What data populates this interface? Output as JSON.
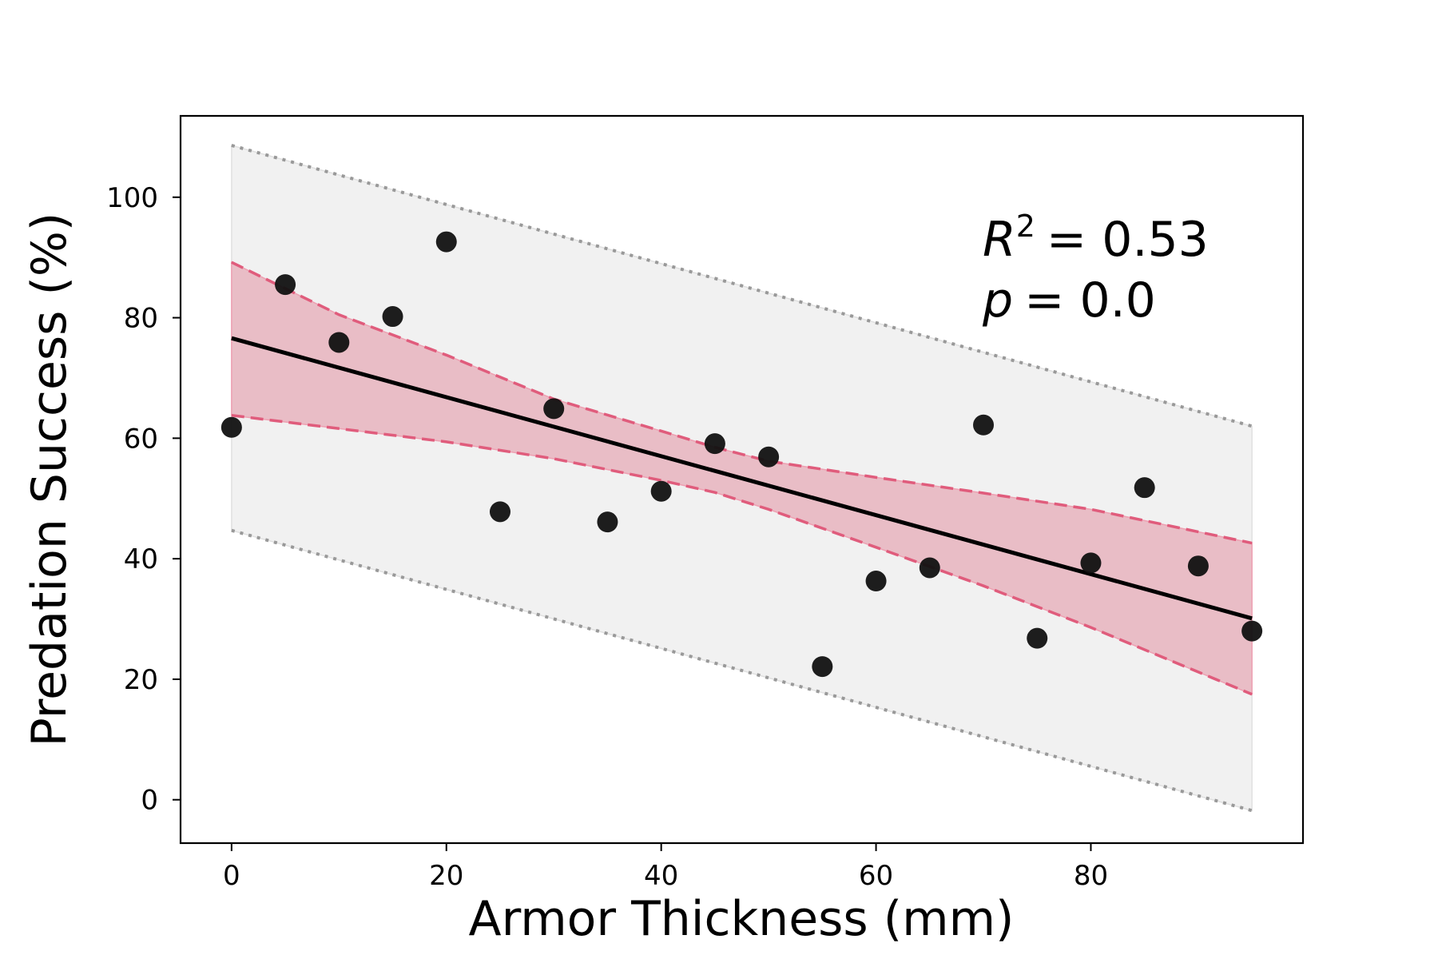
{
  "chart_data": {
    "type": "scatter",
    "xlabel": "Armor Thickness (mm)",
    "ylabel": "Predation Success (%)",
    "xlim": [
      -4.75,
      99.75
    ],
    "ylim": [
      -7.2,
      113.5
    ],
    "xticks": [
      0,
      20,
      40,
      60,
      80
    ],
    "yticks": [
      0,
      20,
      40,
      60,
      80,
      100
    ],
    "grid": false,
    "annotation": {
      "r2_symbol": "R",
      "r2_exponent": "2",
      "r2_value": "= 0.53",
      "p_symbol": "p",
      "p_value": "= 0.0"
    },
    "points": {
      "x": [
        0,
        5,
        10,
        15,
        20,
        25,
        30,
        35,
        40,
        45,
        50,
        55,
        60,
        65,
        70,
        75,
        80,
        85,
        90,
        95
      ],
      "y": [
        61.8,
        85.5,
        75.9,
        80.2,
        92.6,
        47.8,
        64.9,
        46.1,
        51.2,
        59.1,
        56.9,
        22.1,
        36.3,
        38.5,
        62.2,
        26.8,
        39.3,
        51.8,
        38.8,
        28.0
      ],
      "color": "#111111"
    },
    "fit_line": {
      "x": [
        0,
        95
      ],
      "y": [
        76.6,
        30.1
      ],
      "color": "#000000"
    },
    "confidence_band": {
      "x": [
        0,
        10,
        20,
        30,
        40,
        45,
        50,
        60,
        70,
        80,
        95
      ],
      "upper": [
        89.2,
        80.5,
        73.8,
        66.5,
        61.2,
        58.5,
        56.2,
        53.5,
        50.9,
        48.2,
        42.6
      ],
      "lower": [
        63.8,
        61.6,
        59.4,
        56.6,
        53.0,
        51.0,
        48.2,
        41.9,
        35.5,
        28.6,
        17.5
      ],
      "fill": "#e8b4be",
      "edge": "#e05c7c"
    },
    "prediction_band": {
      "x": [
        0,
        95
      ],
      "upper": [
        108.6,
        62.0
      ],
      "lower": [
        44.7,
        -1.8
      ],
      "fill": "#f1f1f1",
      "edge": "#999999"
    }
  }
}
